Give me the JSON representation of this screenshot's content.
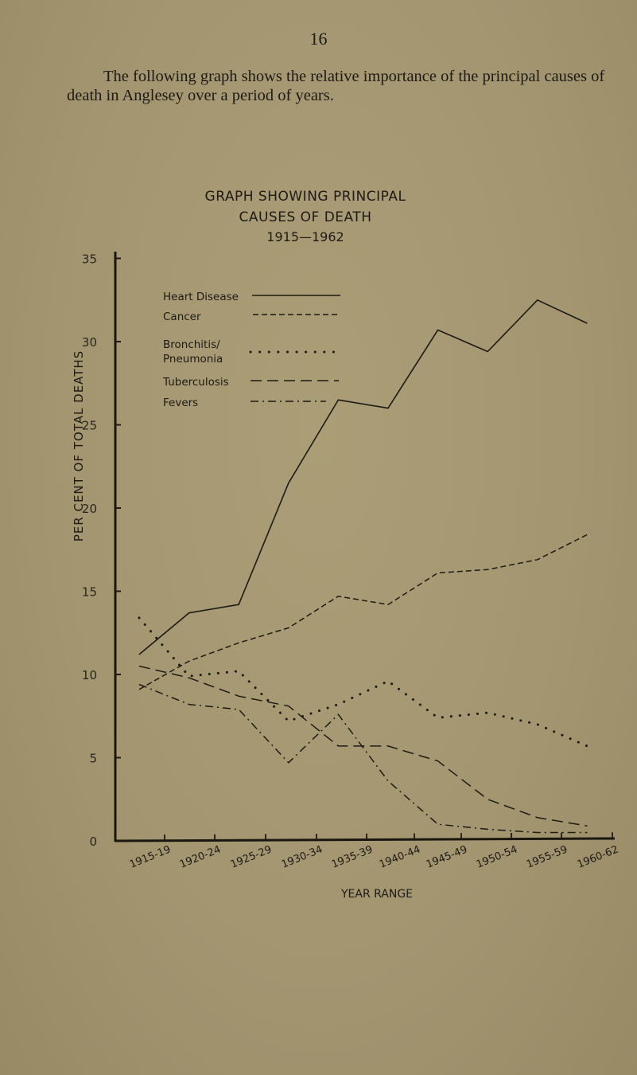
{
  "page": {
    "number": "16",
    "intro_text": "The following graph shows the relative importance of the principal causes of death in Anglesey over a period of years."
  },
  "chart": {
    "title_line1": "GRAPH SHOWING PRINCIPAL",
    "title_line2": "CAUSES OF DEATH",
    "title_line3": "1915—1962",
    "ylabel": "PER CENT OF TOTAL DEATHS",
    "xlabel": "YEAR RANGE",
    "legend": {
      "heart": "Heart Disease",
      "cancer": "Cancer",
      "bronchitis_line1": "Bronchitis/",
      "bronchitis_line2": "Pneumonia",
      "tb": "Tuberculosis",
      "fevers": "Fevers"
    }
  },
  "chart_data": {
    "type": "line",
    "title": "GRAPH SHOWING PRINCIPAL CAUSES OF DEATH 1915—1962",
    "xlabel": "YEAR RANGE",
    "ylabel": "PER CENT OF TOTAL DEATHS",
    "categories": [
      "1915-19",
      "1920-24",
      "1925-29",
      "1930-34",
      "1935-39",
      "1940-44",
      "1945-49",
      "1950-54",
      "1955-59",
      "1960-62"
    ],
    "yticks": [
      0,
      5,
      10,
      15,
      20,
      25,
      30,
      35
    ],
    "ylim": [
      0,
      35
    ],
    "grid": false,
    "legend_position": "upper-left inside plot",
    "series": [
      {
        "name": "Heart Disease",
        "style": "solid",
        "values": [
          11.2,
          13.7,
          14.2,
          21.5,
          26.5,
          26.0,
          30.7,
          29.4,
          32.5,
          31.1
        ]
      },
      {
        "name": "Cancer",
        "style": "short-dash",
        "values": [
          9.1,
          10.8,
          11.9,
          12.8,
          14.7,
          14.2,
          16.1,
          16.3,
          16.9,
          18.4
        ]
      },
      {
        "name": "Bronchitis/Pneumonia",
        "style": "dotted",
        "values": [
          13.4,
          9.9,
          10.2,
          7.2,
          8.2,
          9.6,
          7.4,
          7.7,
          7.0,
          5.7
        ]
      },
      {
        "name": "Tuberculosis",
        "style": "long-dash",
        "values": [
          10.5,
          9.8,
          8.7,
          8.1,
          5.7,
          5.7,
          4.8,
          2.5,
          1.4,
          0.9
        ]
      },
      {
        "name": "Fevers",
        "style": "dash-dot",
        "values": [
          9.4,
          8.2,
          7.9,
          4.7,
          7.6,
          3.6,
          1.0,
          0.7,
          0.5,
          0.5
        ]
      }
    ],
    "colors": {
      "ink": "#1e1a14",
      "paper": "#a89a72"
    }
  }
}
